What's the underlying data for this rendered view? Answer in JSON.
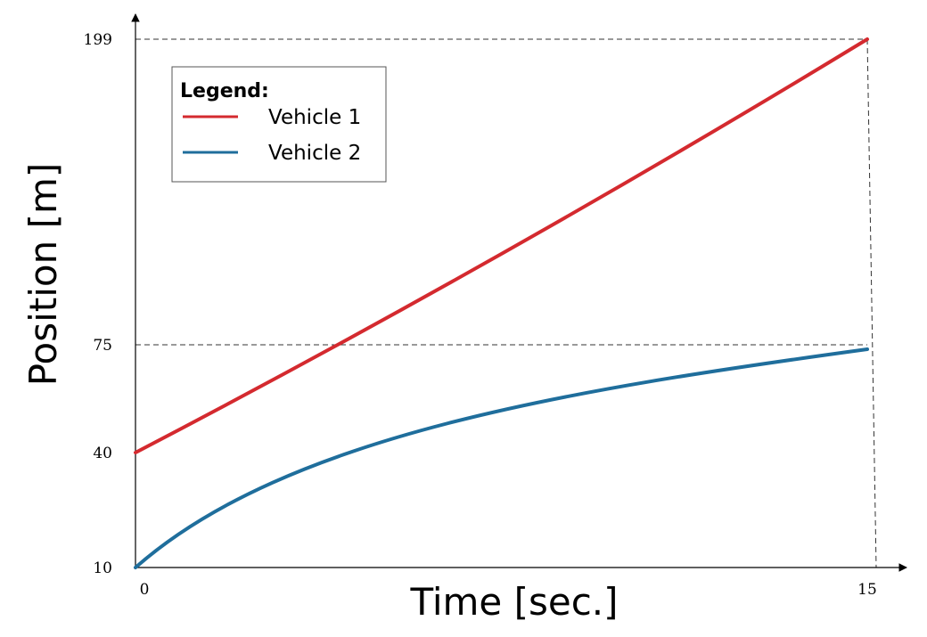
{
  "chart_data": {
    "type": "line",
    "xlabel": "Time [sec.]",
    "ylabel": "Position [m]",
    "xlim": [
      0,
      15
    ],
    "x_ticks": [
      0,
      15
    ],
    "y_ticks": [
      10,
      40,
      75,
      199
    ],
    "y_ticks_note": "y axis is not linear; ticks are placed at marked values",
    "grid": false,
    "legend": {
      "title": "Legend:",
      "position": "top-left"
    },
    "series": [
      {
        "name": "Vehicle 1",
        "color": "#d42a2f",
        "x": [
          0,
          15
        ],
        "y": [
          40,
          199
        ]
      },
      {
        "name": "Vehicle 2",
        "color": "#1f6e9c",
        "x": [
          0,
          15
        ],
        "y": [
          10,
          75
        ]
      }
    ],
    "reference_lines": [
      {
        "from": "y-axis",
        "y": 199,
        "to_x": 15
      },
      {
        "from": "y-axis",
        "y": 75,
        "to_x": 15
      },
      {
        "from": "x-axis",
        "x": 15
      }
    ]
  }
}
